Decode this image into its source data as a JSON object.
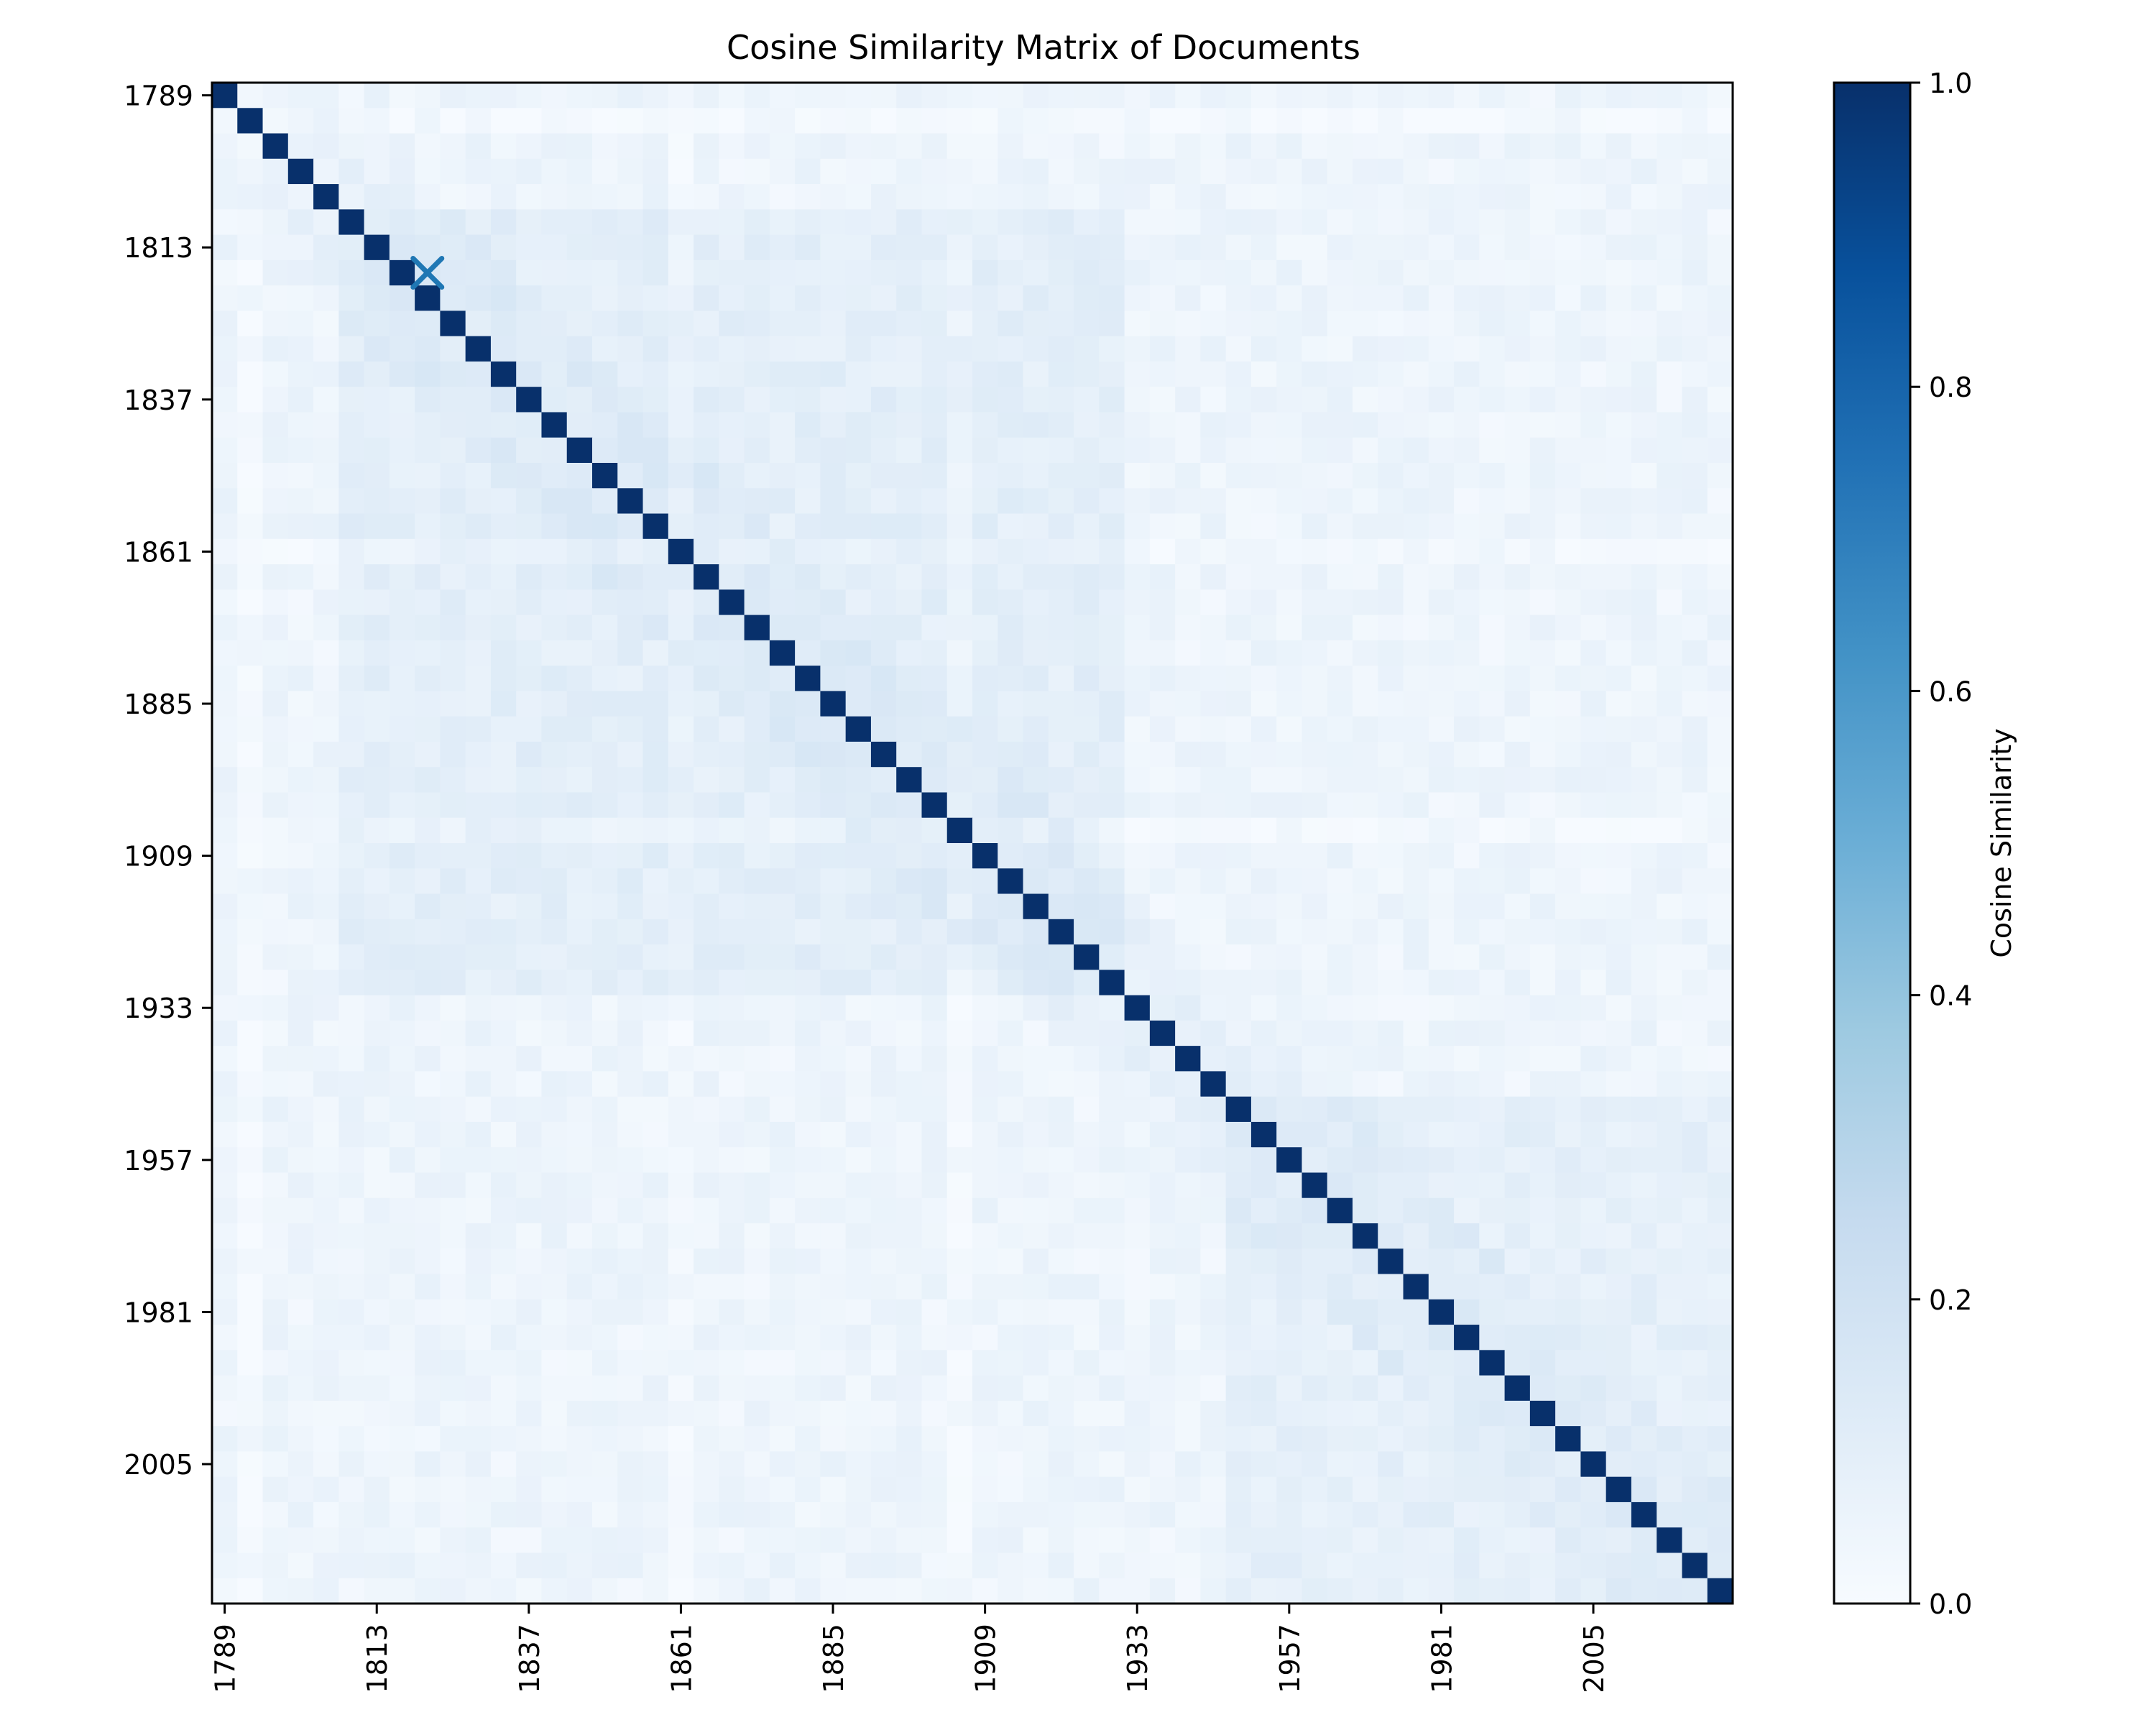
{
  "chart_data": {
    "type": "heatmap",
    "title": "Cosine Similarity Matrix of Documents",
    "n": 60,
    "tick_labels": [
      "1789",
      "1813",
      "1837",
      "1861",
      "1885",
      "1909",
      "1933",
      "1957",
      "1981",
      "2005"
    ],
    "tick_indices": [
      0,
      6,
      12,
      18,
      24,
      30,
      36,
      42,
      48,
      54
    ],
    "diagonal_value": 1.0,
    "off_diagonal_typical": 0.05,
    "colorbar": {
      "label": "Cosine Similarity",
      "range": [
        0.0,
        1.0
      ],
      "ticks": [
        "0.0",
        "0.2",
        "0.4",
        "0.6",
        "0.8",
        "1.0"
      ],
      "colormap": "Blues"
    },
    "marker": {
      "symbol": "x",
      "row": 7,
      "col": 8,
      "color": "#1f77b4"
    },
    "grid": false
  }
}
